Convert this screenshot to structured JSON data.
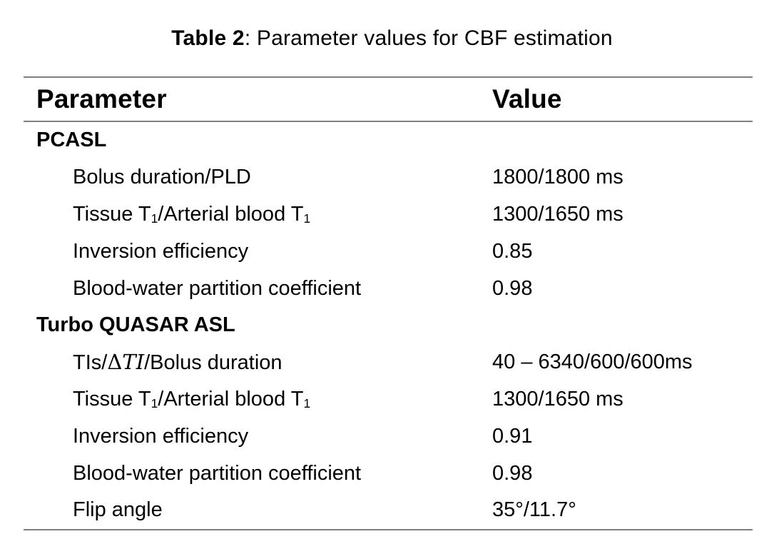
{
  "page": {
    "background": "#ffffff",
    "text_color": "#000000",
    "rule_color": "#7f7f7f"
  },
  "caption": {
    "text": "Table 2: Parameter values for CBF estimation",
    "segments": [
      {
        "t": "Table 2",
        "style": "bold"
      },
      {
        "t": ": Parameter values for CBF estimation"
      }
    ]
  },
  "table": {
    "columns": [
      "Parameter",
      "Value"
    ],
    "rows": [
      {
        "type": "section",
        "parameter_text": "PCASL",
        "parameter": [
          {
            "t": "PCASL"
          }
        ],
        "value_text": "",
        "value": []
      },
      {
        "type": "item",
        "parameter_text": "Bolus duration/PLD",
        "parameter": [
          {
            "t": "Bolus duration/PLD"
          }
        ],
        "value_text": "1800/1800 ms",
        "value": [
          {
            "t": "1800/1800 ms"
          }
        ]
      },
      {
        "type": "item",
        "parameter_text": "Tissue T1/Arterial blood T1",
        "parameter": [
          {
            "t": "Tissue T"
          },
          {
            "t": "1",
            "style": "sub"
          },
          {
            "t": "/Arterial blood T"
          },
          {
            "t": "1",
            "style": "sub"
          }
        ],
        "value_text": "1300/1650 ms",
        "value": [
          {
            "t": "1300/1650 ms"
          }
        ]
      },
      {
        "type": "item",
        "parameter_text": "Inversion efficiency",
        "parameter": [
          {
            "t": "Inversion efficiency"
          }
        ],
        "value_text": "0.85",
        "value": [
          {
            "t": "0.85"
          }
        ]
      },
      {
        "type": "item",
        "parameter_text": "Blood-water partition coefficient",
        "parameter": [
          {
            "t": "Blood-water partition coefficient"
          }
        ],
        "value_text": "0.98",
        "value": [
          {
            "t": "0.98"
          }
        ]
      },
      {
        "type": "section",
        "parameter_text": "Turbo QUASAR ASL",
        "parameter": [
          {
            "t": "Turbo QUASAR ASL"
          }
        ],
        "value_text": "",
        "value": []
      },
      {
        "type": "item",
        "parameter_text": "TIs/ΔTI/Bolus duration",
        "parameter": [
          {
            "t": "TIs/"
          },
          {
            "t": "Δ",
            "style": "math"
          },
          {
            "t": "TI",
            "style": "math-italic"
          },
          {
            "t": "/Bolus duration"
          }
        ],
        "value_text": "40 – 6340/600/600ms",
        "value": [
          {
            "t": "40 – 6340/600/600ms"
          }
        ]
      },
      {
        "type": "item",
        "parameter_text": "Tissue T1/Arterial blood T1",
        "parameter": [
          {
            "t": "Tissue T"
          },
          {
            "t": "1",
            "style": "sub"
          },
          {
            "t": "/Arterial blood T"
          },
          {
            "t": "1",
            "style": "sub"
          }
        ],
        "value_text": "1300/1650 ms",
        "value": [
          {
            "t": "1300/1650 ms"
          }
        ]
      },
      {
        "type": "item",
        "parameter_text": "Inversion efficiency",
        "parameter": [
          {
            "t": "Inversion efficiency"
          }
        ],
        "value_text": "0.91",
        "value": [
          {
            "t": "0.91"
          }
        ]
      },
      {
        "type": "item",
        "parameter_text": "Blood-water partition coefficient",
        "parameter": [
          {
            "t": "Blood-water partition coefficient"
          }
        ],
        "value_text": "0.98",
        "value": [
          {
            "t": "0.98"
          }
        ]
      },
      {
        "type": "item",
        "parameter_text": "Flip angle",
        "parameter": [
          {
            "t": "Flip angle"
          }
        ],
        "value_text": "35°/11.7°",
        "value": [
          {
            "t": "35°/11.7°"
          }
        ]
      }
    ]
  }
}
